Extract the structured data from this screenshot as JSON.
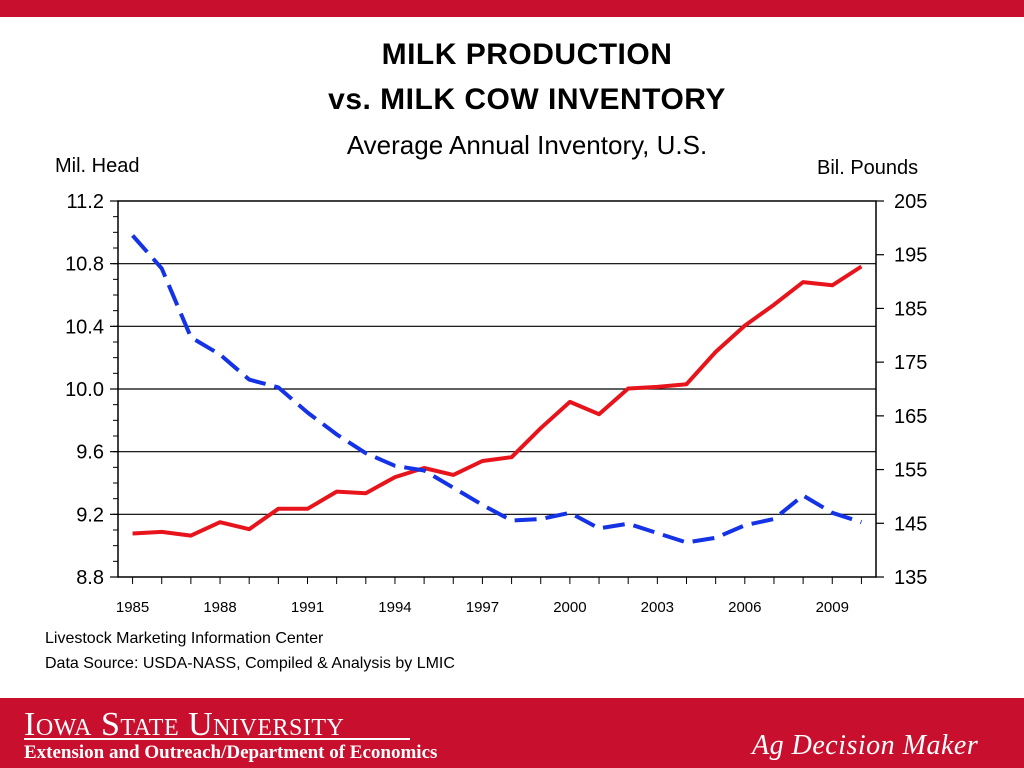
{
  "header": {
    "bar_color": "#c8102e"
  },
  "chart_data": {
    "type": "line",
    "title": "MILK  PRODUCTION",
    "title2": "vs.  MILK  COW  INVENTORY",
    "subtitle": "Average Annual Inventory, U.S.",
    "ylabel_left": "Mil. Head",
    "ylabel_right": "Bil. Pounds",
    "xlim": [
      1984.5,
      2010.5
    ],
    "ylim_left": [
      8.8,
      11.2
    ],
    "ylim_right": [
      135,
      205
    ],
    "left_ticks": [
      "8.8",
      "9.2",
      "9.6",
      "10.0",
      "10.4",
      "10.8",
      "11.2"
    ],
    "right_ticks": [
      "135",
      "145",
      "155",
      "165",
      "175",
      "185",
      "195",
      "205"
    ],
    "x_tick_labels": [
      "1985",
      "1988",
      "1991",
      "1994",
      "1997",
      "2000",
      "2003",
      "2006",
      "2009"
    ],
    "gridlines": "horizontal at left-axis major ticks",
    "series": [
      {
        "axis": "right",
        "color": "#e8141c",
        "style": "solid",
        "x": [
          1985,
          1986,
          1987,
          1988,
          1989,
          1990,
          1991,
          1992,
          1993,
          1994,
          1995,
          1996,
          1997,
          1998,
          1999,
          2000,
          2001,
          2002,
          2003,
          2004,
          2005,
          2006,
          2007,
          2008,
          2009,
          2010
        ],
        "values": [
          143.1,
          143.4,
          142.7,
          145.2,
          143.9,
          147.7,
          147.7,
          150.9,
          150.6,
          153.6,
          155.3,
          154.0,
          156.6,
          157.3,
          162.7,
          167.6,
          165.3,
          170.1,
          170.4,
          170.9,
          176.9,
          181.8,
          185.7,
          189.9,
          189.3,
          192.8
        ]
      },
      {
        "axis": "left",
        "color": "#1432e6",
        "style": "dashed",
        "x": [
          1985,
          1986,
          1987,
          1988,
          1989,
          1990,
          1991,
          1992,
          1993,
          1994,
          1995,
          1996,
          1997,
          1998,
          1999,
          2000,
          2001,
          2002,
          2003,
          2004,
          2005,
          2006,
          2007,
          2008,
          2009,
          2010
        ],
        "values": [
          10.98,
          10.77,
          10.33,
          10.22,
          10.06,
          10.01,
          9.85,
          9.71,
          9.59,
          9.51,
          9.48,
          9.37,
          9.26,
          9.16,
          9.17,
          9.21,
          9.11,
          9.14,
          9.08,
          9.02,
          9.05,
          9.13,
          9.17,
          9.32,
          9.21,
          9.15
        ]
      }
    ]
  },
  "footer": {
    "credit_line1": "Livestock Marketing Information Center",
    "credit_line2": "Data Source:  USDA-NASS, Compiled & Analysis by LMIC",
    "university": "Iowa State University",
    "department": "Extension and Outreach/Department of Economics",
    "brand": "Ag Decision Maker",
    "bar_color": "#c8102e"
  }
}
